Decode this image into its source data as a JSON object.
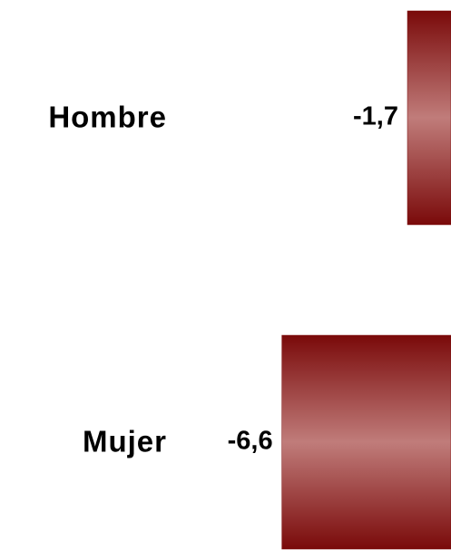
{
  "chart_data": {
    "type": "bar",
    "orientation": "horizontal",
    "categories": [
      "Hombre",
      "Mujer"
    ],
    "values": [
      -1.7,
      -6.6
    ],
    "value_labels": [
      "-1,7",
      "-6,6"
    ],
    "color": "#7a0a0a",
    "xlim": [
      -17.6,
      0
    ]
  }
}
